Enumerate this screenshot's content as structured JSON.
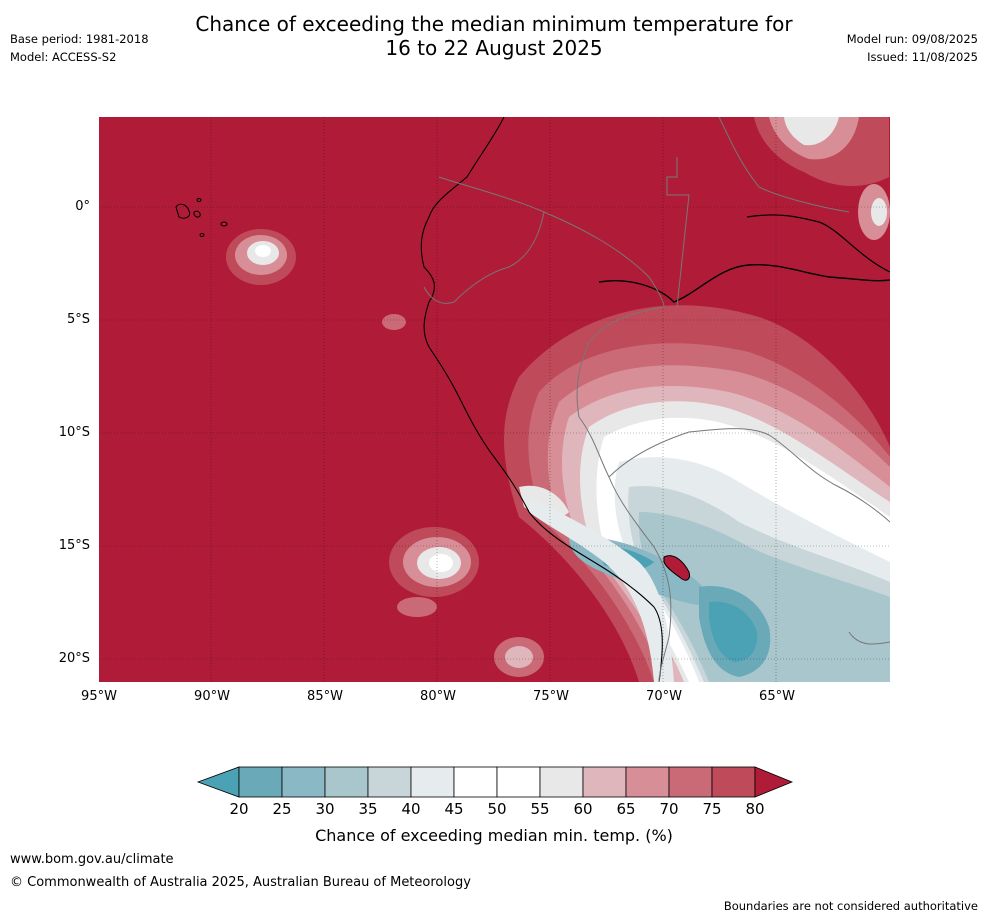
{
  "title": {
    "line1": "Chance of exceeding the median minimum temperature for",
    "line2": "16 to 22 August 2025"
  },
  "meta_left": {
    "base_period": "Base period: 1981-2018",
    "model": "Model: ACCESS-S2"
  },
  "meta_right": {
    "model_run": "Model run: 09/08/2025",
    "issued": "Issued: 11/08/2025"
  },
  "map": {
    "lat_labels": [
      "0°",
      "5°S",
      "10°S",
      "15°S",
      "20°S"
    ],
    "lon_labels": [
      "95°W",
      "90°W",
      "85°W",
      "80°W",
      "75°W",
      "70°W",
      "65°W"
    ]
  },
  "colorbar": {
    "ticks": [
      "20",
      "25",
      "30",
      "35",
      "40",
      "45",
      "50",
      "55",
      "60",
      "65",
      "70",
      "75",
      "80"
    ],
    "label": "Chance of exceeding median min. temp. (%)",
    "colors": {
      "below_20": "#4aa2b4",
      "20_25": "#6aaab8",
      "25_30": "#8ab8c4",
      "30_35": "#a9c6cc",
      "35_40": "#c8d6da",
      "40_45": "#e6ecee",
      "45_50": "#ffffff",
      "50_55": "#ffffff",
      "55_60": "#e8e8e8",
      "60_65": "#e0b6bd",
      "65_70": "#d88e97",
      "70_75": "#c96a76",
      "75_80": "#bf4a59",
      "above_80": "#b01c38"
    }
  },
  "footer": {
    "site": "www.bom.gov.au/climate",
    "copyright": "© Commonwealth of Australia 2025, Australian Bureau of Meteorology",
    "disclaimer": "Boundaries are not considered authoritative"
  }
}
